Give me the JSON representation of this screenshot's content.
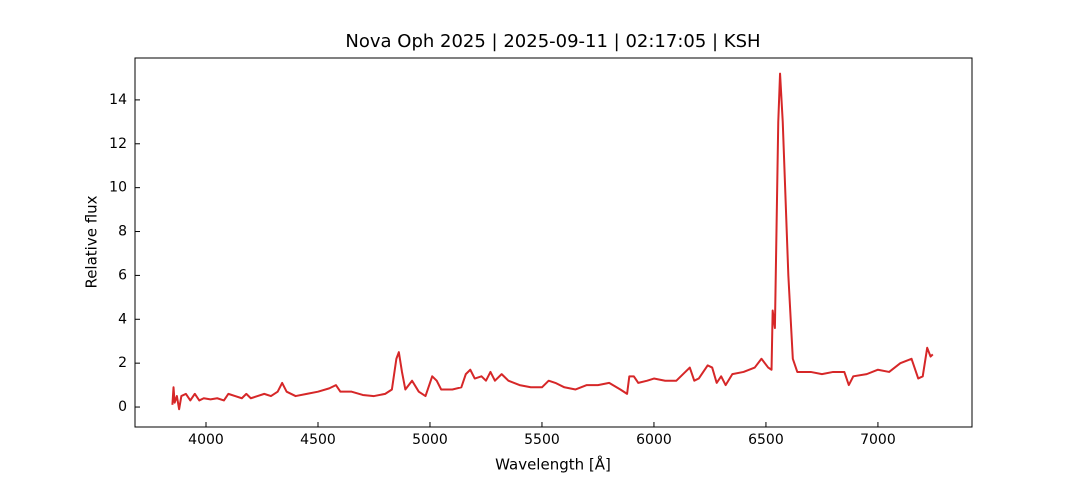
{
  "chart_data": {
    "type": "line",
    "title": "Nova Oph 2025 | 2025-09-11 | 02:17:05 | KSH",
    "x_label": "Wavelength [Å]",
    "y_label": "Relative flux",
    "color": "#d62728",
    "xlim": [
      3683,
      7420
    ],
    "ylim": [
      -0.91,
      15.91
    ],
    "xticks": [
      4000,
      4500,
      5000,
      5500,
      6000,
      6500,
      7000
    ],
    "yticks": [
      0,
      2,
      4,
      6,
      8,
      10,
      12,
      14
    ],
    "x": [
      3850,
      3855,
      3860,
      3870,
      3880,
      3890,
      3910,
      3930,
      3950,
      3970,
      3990,
      4020,
      4050,
      4080,
      4100,
      4130,
      4160,
      4180,
      4200,
      4230,
      4260,
      4290,
      4320,
      4340,
      4360,
      4400,
      4450,
      4500,
      4550,
      4580,
      4600,
      4650,
      4700,
      4750,
      4800,
      4830,
      4850,
      4861,
      4875,
      4890,
      4920,
      4950,
      4980,
      5010,
      5030,
      5050,
      5100,
      5140,
      5160,
      5180,
      5200,
      5230,
      5250,
      5270,
      5290,
      5320,
      5350,
      5400,
      5450,
      5500,
      5530,
      5560,
      5600,
      5650,
      5700,
      5750,
      5800,
      5850,
      5880,
      5890,
      5910,
      5930,
      5970,
      6000,
      6050,
      6100,
      6140,
      6160,
      6180,
      6200,
      6240,
      6260,
      6280,
      6300,
      6320,
      6350,
      6400,
      6450,
      6480,
      6510,
      6525,
      6530,
      6540,
      6555,
      6563,
      6575,
      6600,
      6620,
      6640,
      6700,
      6750,
      6800,
      6850,
      6870,
      6890,
      6950,
      7000,
      7050,
      7100,
      7150,
      7180,
      7200,
      7220,
      7235,
      7245
    ],
    "values": [
      0.1,
      0.9,
      0.2,
      0.5,
      -0.1,
      0.5,
      0.6,
      0.3,
      0.6,
      0.3,
      0.4,
      0.35,
      0.4,
      0.3,
      0.6,
      0.5,
      0.4,
      0.6,
      0.4,
      0.5,
      0.6,
      0.5,
      0.7,
      1.1,
      0.7,
      0.5,
      0.6,
      0.7,
      0.85,
      1.0,
      0.7,
      0.7,
      0.55,
      0.5,
      0.6,
      0.8,
      2.2,
      2.5,
      1.6,
      0.8,
      1.2,
      0.7,
      0.5,
      1.4,
      1.2,
      0.8,
      0.8,
      0.9,
      1.5,
      1.7,
      1.3,
      1.4,
      1.2,
      1.6,
      1.2,
      1.5,
      1.2,
      1.0,
      0.9,
      0.9,
      1.2,
      1.1,
      0.9,
      0.8,
      1.0,
      1.0,
      1.1,
      0.8,
      0.6,
      1.4,
      1.4,
      1.1,
      1.2,
      1.3,
      1.2,
      1.2,
      1.6,
      1.8,
      1.2,
      1.3,
      1.9,
      1.8,
      1.1,
      1.4,
      1.0,
      1.5,
      1.6,
      1.8,
      2.2,
      1.8,
      1.7,
      4.4,
      3.6,
      13,
      15.2,
      13,
      6,
      2.2,
      1.6,
      1.6,
      1.5,
      1.6,
      1.6,
      1.0,
      1.4,
      1.5,
      1.7,
      1.6,
      2.0,
      2.2,
      1.3,
      1.4,
      2.7,
      2.3,
      2.4
    ]
  }
}
